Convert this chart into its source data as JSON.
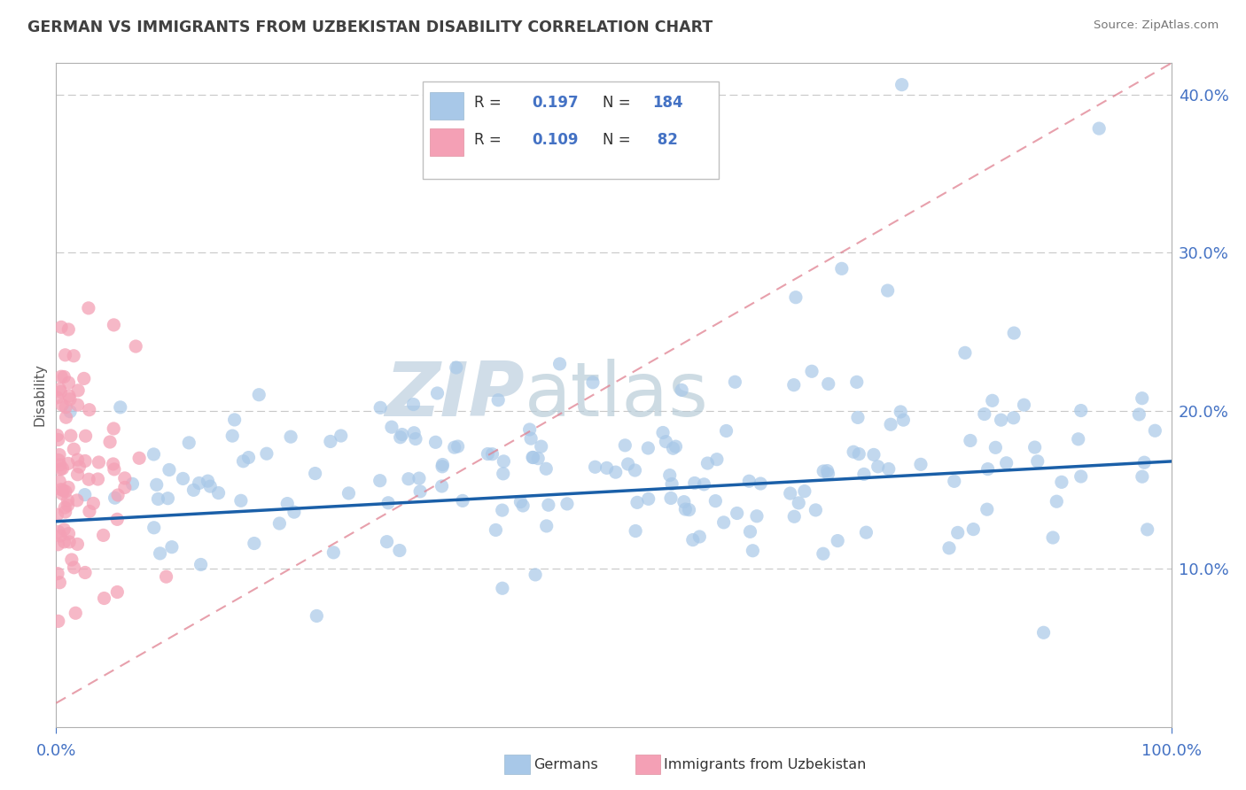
{
  "title": "GERMAN VS IMMIGRANTS FROM UZBEKISTAN DISABILITY CORRELATION CHART",
  "source": "Source: ZipAtlas.com",
  "ylabel": "Disability",
  "watermark_zip": "ZIP",
  "watermark_atlas": "atlas",
  "legend_r1_label": "R = ",
  "legend_r1_val": "0.197",
  "legend_n1_label": "N = ",
  "legend_n1_val": "184",
  "legend_r2_label": "R = ",
  "legend_r2_val": "0.109",
  "legend_n2_label": "N = ",
  "legend_n2_val": " 82",
  "legend_label1": "Germans",
  "legend_label2": "Immigrants from Uzbekistan",
  "blue_color": "#a8c8e8",
  "pink_color": "#f4a0b5",
  "trend_blue": "#1a5fa8",
  "trend_pink": "#e08090",
  "axis_color": "#4472c4",
  "title_color": "#404040",
  "xlim": [
    0,
    1
  ],
  "ylim": [
    0,
    0.42
  ],
  "blue_trend_start_y": 0.13,
  "blue_trend_end_y": 0.168,
  "pink_trend_start_y": 0.015,
  "pink_trend_end_y": 0.42
}
